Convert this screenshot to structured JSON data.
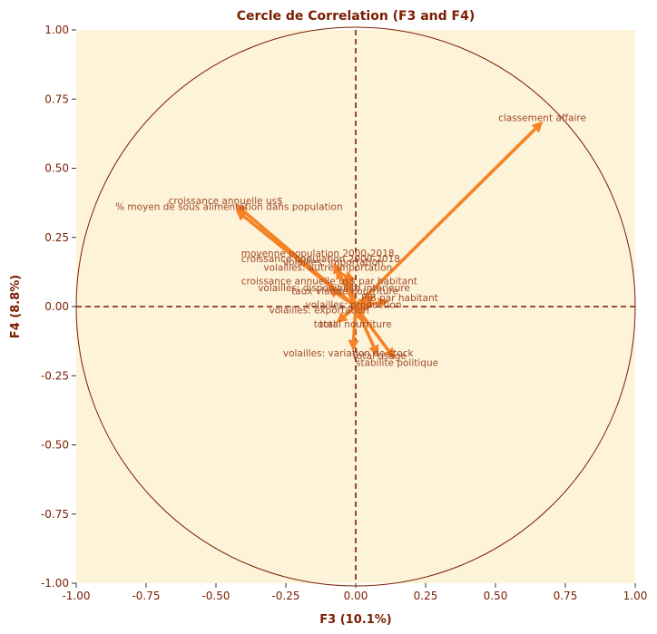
{
  "chart_data": {
    "type": "scatter",
    "subtype": "correlation-circle",
    "title": "Cercle de Correlation (F3 and F4)",
    "xlabel": "F3 (10.1%)",
    "ylabel": "F4 (8.8%)",
    "xlim": [
      -1.0,
      1.0
    ],
    "ylim": [
      -1.0,
      1.0
    ],
    "x_ticks": [
      "-1.00",
      "-0.75",
      "-0.50",
      "-0.25",
      "0.00",
      "0.25",
      "0.50",
      "0.75",
      "1.00"
    ],
    "y_ticks": [
      "-1.00",
      "-0.75",
      "-0.50",
      "-0.25",
      "0.00",
      "0.25",
      "0.50",
      "0.75",
      "1.00"
    ],
    "tick_values": [
      -1.0,
      -0.75,
      -0.5,
      -0.25,
      0.0,
      0.25,
      0.5,
      0.75,
      1.0
    ],
    "grid": false,
    "colors": {
      "background": "#fdf3d8",
      "arrow": "#f58225",
      "circle": "#7a1e00",
      "axes_lines": "#7a1e00",
      "label": "#a04a2a",
      "text": "#7a1e00"
    },
    "variables": [
      {
        "name": "classement affaire",
        "x": 0.67,
        "y": 0.67,
        "lx": 0.51,
        "ly": 0.67
      },
      {
        "name": "croissance annuelle us$",
        "x": -0.43,
        "y": 0.37,
        "lx": -0.67,
        "ly": 0.37
      },
      {
        "name": "% moyen de sous alimentation dans population",
        "x": -0.43,
        "y": 0.35,
        "lx": -0.86,
        "ly": 0.35
      },
      {
        "name": "moyenne population 2000-2018",
        "x": -0.08,
        "y": 0.16,
        "lx": -0.41,
        "ly": 0.18
      },
      {
        "name": "croissance population 2000-2018",
        "x": -0.07,
        "y": 0.14,
        "lx": -0.41,
        "ly": 0.16
      },
      {
        "name": "volailles: importation",
        "x": -0.03,
        "y": 0.13,
        "lx": -0.26,
        "ly": 0.15
      },
      {
        "name": "volailles: autre importation",
        "x": -0.04,
        "y": 0.12,
        "lx": -0.33,
        "ly": 0.13
      },
      {
        "name": "croissance annuelle us$ par habitant",
        "x": -0.1,
        "y": 0.07,
        "lx": -0.41,
        "ly": 0.08
      },
      {
        "name": "volailles: disponibilite interieure",
        "x": 0.07,
        "y": 0.04,
        "lx": -0.35,
        "ly": 0.055
      },
      {
        "name": "taux viande nourriture",
        "x": 0.05,
        "y": 0.03,
        "lx": -0.23,
        "ly": 0.045
      },
      {
        "name": "PIB par habitant",
        "x": 0.12,
        "y": 0.02,
        "lx": 0.02,
        "ly": 0.02
      },
      {
        "name": "volailles: production",
        "x": 0.05,
        "y": -0.01,
        "lx": -0.18,
        "ly": -0.005
      },
      {
        "name": "volailles: exportation",
        "x": 0.02,
        "y": -0.02,
        "lx": -0.31,
        "ly": -0.025
      },
      {
        "name": "total",
        "x": -0.07,
        "y": -0.06,
        "lx": -0.15,
        "ly": -0.075
      },
      {
        "name": "total nourriture",
        "x": 0.03,
        "y": -0.06,
        "lx": -0.13,
        "ly": -0.075
      },
      {
        "name": "volailles: variation de stock",
        "x": -0.01,
        "y": -0.16,
        "lx": -0.26,
        "ly": -0.18
      },
      {
        "name": "total usage",
        "x": 0.08,
        "y": -0.18,
        "lx": -0.01,
        "ly": -0.19
      },
      {
        "name": "stabilite politique",
        "x": 0.14,
        "y": -0.19,
        "lx": 0.0,
        "ly": -0.215
      }
    ]
  }
}
